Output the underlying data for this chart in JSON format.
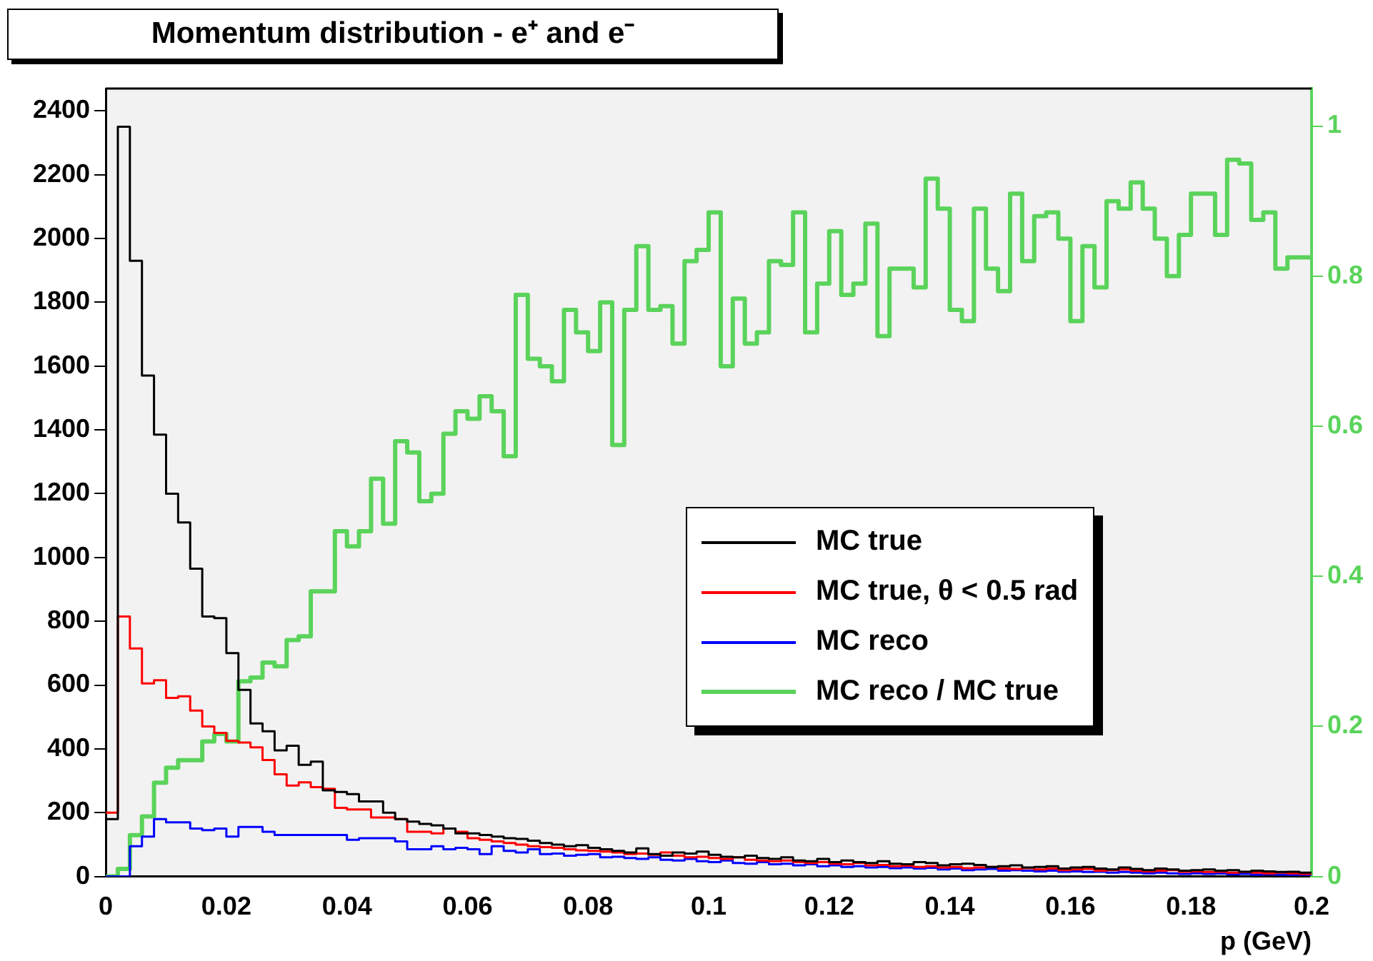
{
  "chart_data": {
    "type": "histogram",
    "title": "Momentum distribution - e⁺ and e⁻",
    "xlabel": "p (GeV)",
    "bins": [
      0,
      0.002,
      0.004,
      0.006,
      0.008,
      0.01,
      0.012,
      0.014,
      0.016,
      0.018,
      0.02,
      0.022,
      0.024,
      0.026,
      0.028,
      0.03,
      0.032,
      0.034,
      0.036,
      0.038,
      0.04,
      0.042,
      0.044,
      0.046,
      0.048,
      0.05,
      0.052,
      0.054,
      0.056,
      0.058,
      0.06,
      0.062,
      0.064,
      0.066,
      0.068,
      0.07,
      0.072,
      0.074,
      0.076,
      0.078,
      0.08,
      0.082,
      0.084,
      0.086,
      0.088,
      0.09,
      0.092,
      0.094,
      0.096,
      0.098,
      0.1,
      0.102,
      0.104,
      0.106,
      0.108,
      0.11,
      0.112,
      0.114,
      0.116,
      0.118,
      0.12,
      0.122,
      0.124,
      0.126,
      0.128,
      0.13,
      0.132,
      0.134,
      0.136,
      0.138,
      0.14,
      0.142,
      0.144,
      0.146,
      0.148,
      0.15,
      0.152,
      0.154,
      0.156,
      0.158,
      0.16,
      0.162,
      0.164,
      0.166,
      0.168,
      0.17,
      0.172,
      0.174,
      0.176,
      0.178,
      0.18,
      0.182,
      0.184,
      0.186,
      0.188,
      0.19,
      0.192,
      0.194,
      0.196,
      0.198,
      0.2
    ],
    "series": [
      {
        "name": "MC true",
        "color": "#000000",
        "values": [
          180,
          2350,
          1930,
          1570,
          1385,
          1200,
          1110,
          965,
          815,
          810,
          700,
          585,
          480,
          455,
          395,
          410,
          350,
          360,
          270,
          265,
          258,
          235,
          235,
          200,
          180,
          172,
          165,
          160,
          150,
          135,
          135,
          130,
          125,
          120,
          118,
          112,
          105,
          100,
          95,
          98,
          90,
          85,
          80,
          75,
          88,
          70,
          65,
          75,
          72,
          78,
          68,
          62,
          60,
          65,
          58,
          55,
          60,
          50,
          48,
          55,
          45,
          50,
          45,
          42,
          48,
          40,
          38,
          45,
          42,
          35,
          38,
          40,
          36,
          30,
          32,
          35,
          28,
          30,
          32,
          25,
          28,
          30,
          25,
          22,
          28,
          24,
          20,
          25,
          22,
          18,
          20,
          22,
          18,
          20,
          15,
          18,
          16,
          14,
          15,
          12
        ]
      },
      {
        "name": "MC true, θ < 0.5 rad",
        "color": "#ff0000",
        "values": [
          200,
          815,
          715,
          605,
          615,
          560,
          565,
          520,
          470,
          450,
          425,
          420,
          405,
          365,
          320,
          285,
          295,
          280,
          275,
          215,
          210,
          210,
          185,
          185,
          180,
          140,
          140,
          135,
          150,
          140,
          120,
          115,
          110,
          105,
          100,
          95,
          92,
          90,
          85,
          82,
          80,
          78,
          75,
          70,
          72,
          68,
          75,
          65,
          60,
          62,
          58,
          55,
          60,
          52,
          50,
          48,
          50,
          45,
          42,
          45,
          40,
          38,
          42,
          35,
          36,
          32,
          34,
          30,
          32,
          28,
          30,
          26,
          28,
          30,
          25,
          24,
          26,
          22,
          25,
          20,
          22,
          24,
          18,
          20,
          22,
          18,
          16,
          18,
          20,
          15,
          16,
          14,
          15,
          12,
          14,
          12,
          10,
          12,
          10,
          8
        ]
      },
      {
        "name": "MC reco",
        "color": "#0000ff",
        "values": [
          0,
          0,
          95,
          125,
          180,
          170,
          170,
          150,
          145,
          150,
          125,
          155,
          155,
          140,
          130,
          130,
          130,
          130,
          130,
          130,
          115,
          120,
          120,
          120,
          110,
          85,
          85,
          95,
          85,
          90,
          85,
          70,
          95,
          80,
          75,
          85,
          70,
          72,
          65,
          68,
          70,
          60,
          62,
          58,
          55,
          60,
          52,
          50,
          55,
          48,
          45,
          50,
          42,
          40,
          45,
          38,
          40,
          35,
          38,
          32,
          35,
          30,
          32,
          28,
          30,
          26,
          28,
          25,
          27,
          22,
          25,
          20,
          22,
          24,
          18,
          20,
          18,
          16,
          18,
          15,
          16,
          14,
          15,
          12,
          14,
          12,
          10,
          12,
          10,
          8,
          10,
          8,
          9,
          7,
          8,
          6,
          7,
          6,
          5,
          5
        ]
      },
      {
        "name": "MC reco / MC true",
        "color": "#5ad35a",
        "axis": "y2",
        "values": [
          0,
          0.01,
          0.055,
          0.08,
          0.125,
          0.145,
          0.155,
          0.155,
          0.18,
          0.19,
          0.18,
          0.26,
          0.265,
          0.285,
          0.28,
          0.315,
          0.32,
          0.38,
          0.38,
          0.46,
          0.44,
          0.46,
          0.53,
          0.47,
          0.58,
          0.565,
          0.5,
          0.51,
          0.59,
          0.62,
          0.61,
          0.64,
          0.62,
          0.56,
          0.775,
          0.69,
          0.68,
          0.66,
          0.755,
          0.725,
          0.7,
          0.765,
          0.575,
          0.755,
          0.84,
          0.755,
          0.76,
          0.71,
          0.82,
          0.835,
          0.885,
          0.68,
          0.77,
          0.71,
          0.725,
          0.82,
          0.815,
          0.885,
          0.725,
          0.79,
          0.86,
          0.775,
          0.79,
          0.87,
          0.72,
          0.81,
          0.81,
          0.785,
          0.93,
          0.89,
          0.755,
          0.74,
          0.89,
          0.81,
          0.78,
          0.91,
          0.82,
          0.88,
          0.885,
          0.85,
          0.74,
          0.84,
          0.785,
          0.9,
          0.89,
          0.925,
          0.89,
          0.85,
          0.8,
          0.855,
          0.91,
          0.91,
          0.855,
          0.955,
          0.95,
          0.875,
          0.885,
          0.81,
          0.825,
          0.825
        ]
      }
    ],
    "xlim": [
      0,
      0.2
    ],
    "xticks": [
      0,
      0.02,
      0.04,
      0.06,
      0.08,
      0.1,
      0.12,
      0.14,
      0.16,
      0.18,
      0.2
    ],
    "ylim": [
      0,
      2470
    ],
    "yticks": [
      0,
      200,
      400,
      600,
      800,
      1000,
      1200,
      1400,
      1600,
      1800,
      2000,
      2200,
      2400
    ],
    "y2lim": [
      0,
      1.05
    ],
    "y2ticks": [
      0,
      0.2,
      0.4,
      0.6,
      0.8,
      1
    ],
    "legend": "right",
    "grid": false
  }
}
